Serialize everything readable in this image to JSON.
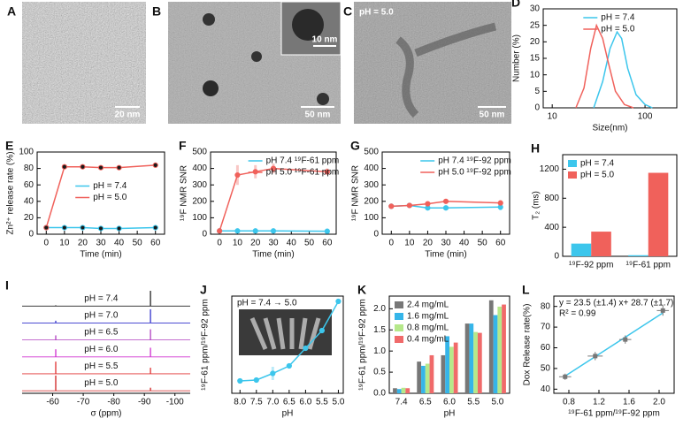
{
  "image_panels": [
    {
      "label": "A",
      "scale_bar": "20 nm"
    },
    {
      "label": "B",
      "scale_bar": "50 nm",
      "inset_scale_bar": "10 nm"
    },
    {
      "label": "C",
      "annotation": "pH = 5.0",
      "scale_bar": "50 nm"
    }
  ],
  "chart_data": [
    {
      "label": "D",
      "type": "line",
      "xscale": "log",
      "xlim": [
        8,
        220
      ],
      "xticks": [
        10,
        100
      ],
      "ylim": [
        0,
        30
      ],
      "yticks": [
        0,
        5,
        10,
        15,
        20,
        25,
        30
      ],
      "xlabel": "Size(nm)",
      "ylabel": "Number (%)",
      "legend": "upper right",
      "markers": false,
      "series": [
        {
          "name": "pH = 7.4",
          "color": "#3cc6ec",
          "x": [
            28,
            35,
            42,
            50,
            56,
            65,
            80,
            100,
            120
          ],
          "values": [
            0,
            8,
            18,
            23,
            21,
            12,
            4,
            1,
            0
          ]
        },
        {
          "name": "pH = 5.0",
          "color": "#f0615b",
          "x": [
            18,
            22,
            26,
            30,
            35,
            40,
            48,
            60,
            75
          ],
          "values": [
            0,
            6,
            18,
            25,
            21,
            14,
            5,
            1,
            0
          ]
        }
      ]
    },
    {
      "label": "E",
      "type": "line",
      "xlim": [
        -5,
        65
      ],
      "xticks": [
        0,
        10,
        20,
        30,
        40,
        50,
        60
      ],
      "ylim": [
        0,
        100
      ],
      "yticks": [
        0,
        20,
        40,
        60,
        80,
        100
      ],
      "xlabel": "Time (min)",
      "ylabel": "Zn²⁺ release rate (%)",
      "legend": "center right",
      "markers": true,
      "marker_color": "#1a1a1a",
      "x": [
        0,
        10,
        20,
        30,
        40,
        60
      ],
      "series": [
        {
          "name": "pH = 7.4",
          "color": "#3cc6ec",
          "values": [
            8,
            8,
            8,
            7,
            7,
            8
          ]
        },
        {
          "name": "pH = 5.0",
          "color": "#f0615b",
          "values": [
            8,
            82,
            82,
            81,
            81,
            84
          ]
        }
      ]
    },
    {
      "label": "F",
      "type": "line",
      "xlim": [
        -5,
        65
      ],
      "xticks": [
        0,
        10,
        20,
        30,
        40,
        50,
        60
      ],
      "ylim": [
        0,
        500
      ],
      "yticks": [
        0,
        100,
        200,
        300,
        400,
        500
      ],
      "xlabel": "Time (min)",
      "ylabel": "¹⁹F NMR SNR",
      "legend": "upper right",
      "markers": true,
      "x": [
        0,
        10,
        20,
        30,
        60
      ],
      "series": [
        {
          "name": "pH 7.4 ¹⁹F-61 ppm",
          "color": "#3cc6ec",
          "values": [
            20,
            20,
            20,
            20,
            18
          ],
          "errors": [
            0,
            5,
            5,
            5,
            5
          ]
        },
        {
          "name": "pH 5.0 ¹⁹F-61 ppm",
          "color": "#f0615b",
          "values": [
            20,
            360,
            380,
            400,
            380
          ],
          "errors": [
            0,
            60,
            40,
            30,
            20
          ]
        }
      ]
    },
    {
      "label": "G",
      "type": "line",
      "xlim": [
        -5,
        65
      ],
      "xticks": [
        0,
        10,
        20,
        30,
        40,
        50,
        60
      ],
      "ylim": [
        0,
        500
      ],
      "yticks": [
        0,
        100,
        200,
        300,
        400,
        500
      ],
      "xlabel": "Time (min)",
      "ylabel": "¹⁹F NMR SNR",
      "legend": "upper right",
      "markers": true,
      "x": [
        0,
        10,
        20,
        30,
        60
      ],
      "series": [
        {
          "name": "pH 7.4 ¹⁹F-92 ppm",
          "color": "#3cc6ec",
          "values": [
            170,
            175,
            160,
            160,
            165
          ],
          "errors": [
            0,
            5,
            10,
            15,
            20
          ]
        },
        {
          "name": "pH 5.0 ¹⁹F-92 ppm",
          "color": "#f0615b",
          "values": [
            170,
            175,
            185,
            200,
            190
          ],
          "errors": [
            0,
            5,
            10,
            10,
            15
          ]
        }
      ]
    },
    {
      "label": "H",
      "type": "bar",
      "categories": [
        "¹⁹F-92 ppm",
        "¹⁹F-61 ppm"
      ],
      "ylim": [
        0,
        1400
      ],
      "yticks": [
        0,
        400,
        800,
        1200
      ],
      "ylabel": "T₂ (ms)",
      "legend": "upper left",
      "series": [
        {
          "name": "pH = 7.4",
          "color": "#3cc6ec",
          "values": [
            175,
            15
          ]
        },
        {
          "name": "pH = 5.0",
          "color": "#f0615b",
          "values": [
            340,
            1150
          ]
        }
      ]
    },
    {
      "label": "I",
      "type": "spectrum",
      "xlim": [
        -50,
        -105
      ],
      "xticks": [
        -60,
        -70,
        -80,
        -90,
        -100
      ],
      "xlabel": "σ (ppm)",
      "peaks": [
        -61,
        -92
      ],
      "series": [
        {
          "name": "pH = 7.4",
          "color": "#222222",
          "values": [
            0.05,
            1.0
          ]
        },
        {
          "name": "pH = 7.0",
          "color": "#3333cc",
          "values": [
            0.15,
            0.9
          ]
        },
        {
          "name": "pH = 6.5",
          "color": "#b040c0",
          "values": [
            0.3,
            0.7
          ]
        },
        {
          "name": "pH = 6.0",
          "color": "#d030d0",
          "values": [
            0.5,
            0.6
          ]
        },
        {
          "name": "pH = 5.5",
          "color": "#e03030",
          "values": [
            0.8,
            0.4
          ]
        },
        {
          "name": "pH = 5.0",
          "color": "#d02020",
          "values": [
            1.0,
            0.2
          ]
        }
      ]
    },
    {
      "label": "J",
      "type": "line",
      "xlim": [
        8.25,
        4.85
      ],
      "xticks": [
        {
          "value": 8,
          "label": "8.0"
        },
        {
          "value": 7.5,
          "label": "7.5"
        },
        {
          "value": 7,
          "label": "7.0"
        },
        {
          "value": 6.5,
          "label": "6.5"
        },
        {
          "value": 6,
          "label": "6.0"
        },
        {
          "value": 5.5,
          "label": "5.5"
        },
        {
          "value": 5,
          "label": "5.0"
        }
      ],
      "ylim": [
        0,
        2.2
      ],
      "xlabel": "pH",
      "ylabel": "¹⁹F-61 ppm/¹⁹F-92 ppm",
      "markers": true,
      "annotations": [
        "pH = 7.4 → 5.0"
      ],
      "x": [
        8,
        7.5,
        7,
        6.5,
        6,
        5.5,
        5
      ],
      "series": [
        {
          "color": "#3cc6ec",
          "values": [
            0.28,
            0.3,
            0.45,
            0.62,
            1.02,
            1.42,
            2.08
          ],
          "errors": [
            0.02,
            0.03,
            0.15,
            0.04,
            0.05,
            0.04,
            0.03
          ]
        }
      ]
    },
    {
      "label": "K",
      "type": "bar",
      "categories": [
        "7.4",
        "6.5",
        "6.0",
        "5.5",
        "5.0"
      ],
      "ylim": [
        0,
        2.3
      ],
      "yticks": [
        {
          "value": 0,
          "label": "0.0"
        },
        {
          "value": 0.5,
          "label": "0.5"
        },
        {
          "value": 1,
          "label": "1.0"
        },
        {
          "value": 1.5,
          "label": "1.5"
        },
        {
          "value": 2,
          "label": "2.0"
        }
      ],
      "xlabel": "pH",
      "ylabel": "¹⁹F-61 ppm/¹⁹F-92 ppm",
      "legend": "upper left",
      "series": [
        {
          "name": "2.4 mg/mL",
          "color": "#777777",
          "values": [
            0.12,
            0.75,
            0.9,
            1.65,
            2.2
          ]
        },
        {
          "name": "1.6 mg/mL",
          "color": "#35b5e9",
          "values": [
            0.1,
            0.65,
            1.35,
            1.65,
            1.85
          ]
        },
        {
          "name": "0.8 mg/mL",
          "color": "#b6e88a",
          "values": [
            0.13,
            0.7,
            1.1,
            1.45,
            2.05
          ]
        },
        {
          "name": "0.4 mg/mL",
          "color": "#f06a6a",
          "values": [
            0.12,
            0.9,
            1.2,
            1.43,
            2.1
          ]
        }
      ]
    },
    {
      "label": "L",
      "type": "scatter",
      "xlim": [
        0.6,
        2.2
      ],
      "xticks": [
        {
          "value": 0.8,
          "label": "0.8"
        },
        {
          "value": 1.2,
          "label": "1.2"
        },
        {
          "value": 1.6,
          "label": "1.6"
        },
        {
          "value": 2,
          "label": "2.0"
        }
      ],
      "ylim": [
        38,
        85
      ],
      "yticks": [
        40,
        50,
        60,
        70,
        80
      ],
      "xlabel": "¹⁹F-61 ppm/¹⁹F-92 ppm",
      "ylabel": "Dox Release rate(%)",
      "annotations": [
        "y = 23.5 (±1.4) x+ 28.7 (±1.7)",
        "R² = 0.99"
      ],
      "color": "#777777",
      "line_color": "#3cc6ec",
      "x": [
        0.75,
        1.15,
        1.55,
        2.05
      ],
      "values": [
        46,
        56,
        64,
        78
      ],
      "x_errors": [
        0.08,
        0.1,
        0.08,
        0.08
      ],
      "errors": [
        1.5,
        2,
        2,
        2.5
      ],
      "fit": {
        "slope": 23.5,
        "intercept": 28.7
      }
    }
  ]
}
